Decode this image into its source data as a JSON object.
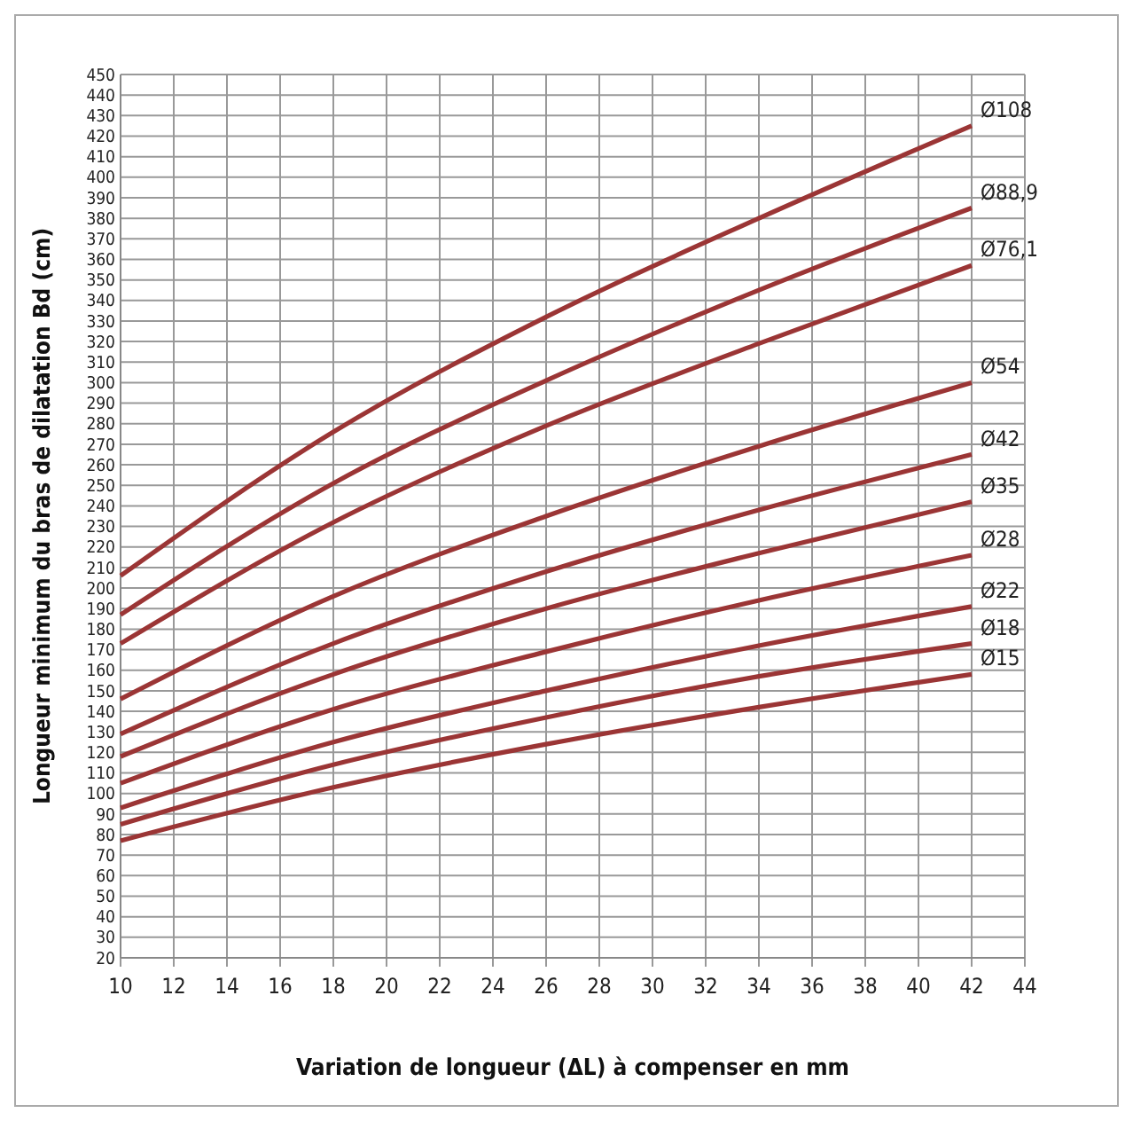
{
  "chart_data": {
    "type": "line",
    "xlabel": "Variation de longueur (ΔL) à compenser en mm",
    "ylabel": "Longueur minimum du bras de dilatation Bd (cm)",
    "x": [
      10,
      18,
      26,
      34,
      42
    ],
    "series": [
      {
        "name": "Ø108",
        "color": "#9b3535",
        "values": [
          206,
          276,
          332,
          380,
          425
        ]
      },
      {
        "name": "Ø88,9",
        "color": "#9b3535",
        "values": [
          187,
          251,
          301,
          345,
          385
        ]
      },
      {
        "name": "Ø76,1",
        "color": "#9b3535",
        "values": [
          173,
          232,
          279,
          319,
          357
        ]
      },
      {
        "name": "Ø54",
        "color": "#9b3535",
        "values": [
          146,
          196,
          235,
          269,
          300
        ]
      },
      {
        "name": "Ø42",
        "color": "#9b3535",
        "values": [
          129,
          173,
          208,
          238,
          265
        ]
      },
      {
        "name": "Ø35",
        "color": "#9b3535",
        "values": [
          118,
          158,
          190,
          217,
          242
        ]
      },
      {
        "name": "Ø28",
        "color": "#9b3535",
        "values": [
          105,
          141,
          169,
          194,
          216
        ]
      },
      {
        "name": "Ø22",
        "color": "#9b3535",
        "values": [
          93,
          125,
          150,
          172,
          191
        ]
      },
      {
        "name": "Ø18",
        "color": "#9b3535",
        "values": [
          85,
          114,
          137,
          157,
          173
        ]
      },
      {
        "name": "Ø15",
        "color": "#9b3535",
        "values": [
          77,
          103,
          124,
          142,
          158
        ]
      }
    ],
    "xlim": [
      10,
      44
    ],
    "xticks": [
      10,
      12,
      14,
      16,
      18,
      20,
      22,
      24,
      26,
      28,
      30,
      32,
      34,
      36,
      38,
      40,
      42,
      44
    ],
    "ylim": [
      20,
      450
    ],
    "yticks": [
      20,
      30,
      40,
      50,
      60,
      70,
      80,
      90,
      100,
      110,
      120,
      130,
      140,
      150,
      160,
      170,
      180,
      190,
      200,
      210,
      220,
      230,
      240,
      250,
      260,
      270,
      280,
      290,
      300,
      310,
      320,
      330,
      340,
      350,
      360,
      370,
      380,
      390,
      400,
      410,
      420,
      430,
      440,
      450
    ],
    "grid": true,
    "marker": "none",
    "line_style": "solid"
  }
}
